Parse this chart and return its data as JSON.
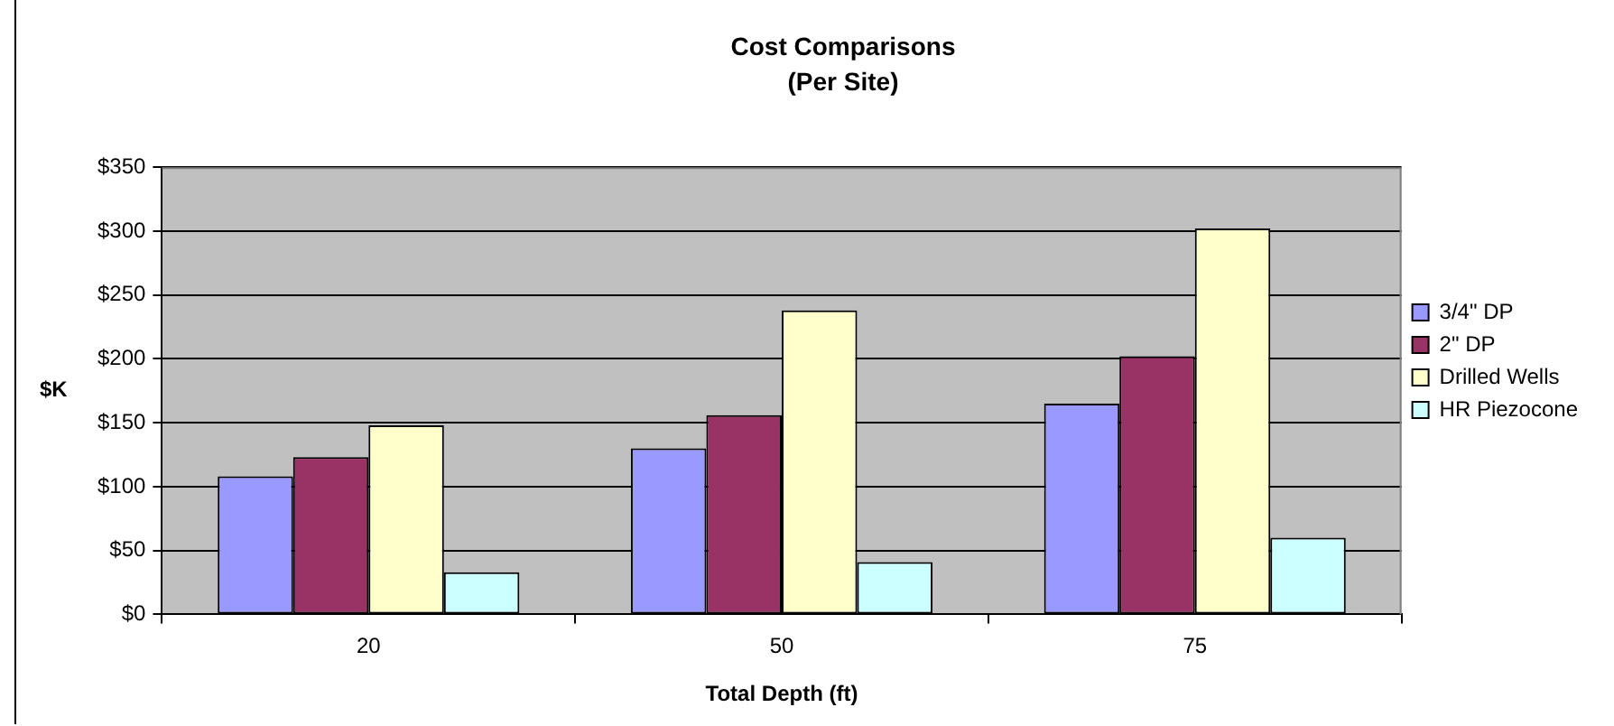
{
  "chart_data": {
    "type": "bar",
    "title": "Cost Comparisons",
    "subtitle": "(Per Site)",
    "xlabel": "Total Depth (ft)",
    "ylabel": "$K",
    "categories": [
      "20",
      "50",
      "75"
    ],
    "series": [
      {
        "name": "3/4\" DP",
        "color": "#9999ff",
        "values": [
          108,
          130,
          165
        ]
      },
      {
        "name": "2\" DP",
        "color": "#993366",
        "values": [
          123,
          156,
          202
        ]
      },
      {
        "name": "Drilled Wells",
        "color": "#ffffcc",
        "values": [
          148,
          238,
          302
        ]
      },
      {
        "name": "HR Piezocone",
        "color": "#ccffff",
        "values": [
          33,
          41,
          60
        ]
      }
    ],
    "ylim": [
      0,
      350
    ],
    "yticks": [
      {
        "value": 0,
        "label": "$0"
      },
      {
        "value": 50,
        "label": "$50"
      },
      {
        "value": 100,
        "label": "$100"
      },
      {
        "value": 150,
        "label": "$150"
      },
      {
        "value": 200,
        "label": "$200"
      },
      {
        "value": 250,
        "label": "$250"
      },
      {
        "value": 300,
        "label": "$300"
      },
      {
        "value": 350,
        "label": "$350"
      }
    ],
    "grid": "y",
    "legend": "right"
  }
}
